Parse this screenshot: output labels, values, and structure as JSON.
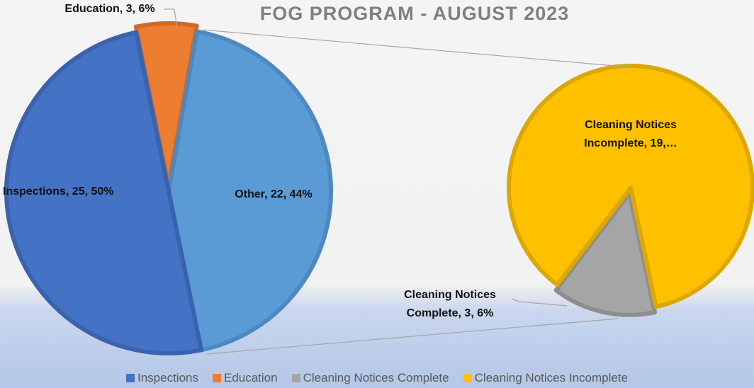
{
  "chart_data": {
    "type": "pie",
    "title": "FOG PROGRAM - AUGUST 2023",
    "categories": [
      "Inspections",
      "Education",
      "Other"
    ],
    "values": [
      25,
      3,
      22
    ],
    "value_labels": [
      "Inspections, 25, 50%",
      "Education, 3, 6%",
      "Other, 22, 44%"
    ],
    "colors": [
      "#4472c4",
      "#ed7d31",
      "#5b9bd5"
    ],
    "secondary": {
      "categories": [
        "Cleaning Notices Complete",
        "Cleaning Notices Incomplete"
      ],
      "values": [
        3,
        19
      ],
      "value_labels": [
        "Cleaning Notices Complete, 3, 6%",
        "Cleaning Notices Incomplete, 19,…"
      ],
      "colors": [
        "#a5a5a5",
        "#ffc000"
      ]
    },
    "legend": "bottom"
  }
}
